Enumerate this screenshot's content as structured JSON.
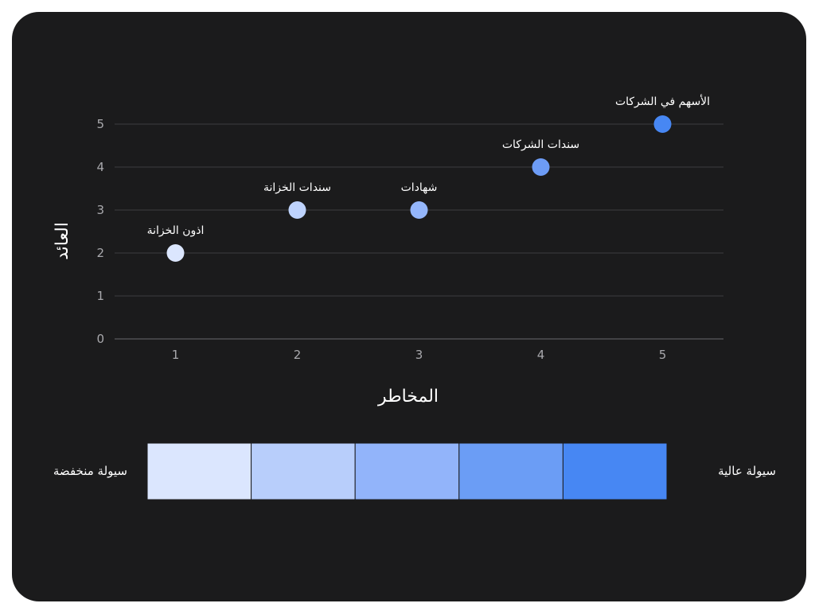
{
  "chart_data": {
    "type": "scatter",
    "title": "",
    "xlabel": "المخاطر",
    "ylabel": "العائد",
    "xlim": [
      0.5,
      5.5
    ],
    "ylim": [
      0,
      5
    ],
    "x_ticks": [
      1,
      2,
      3,
      4,
      5
    ],
    "y_ticks": [
      0,
      1,
      2,
      3,
      4,
      5
    ],
    "grid": "horizontal",
    "points": [
      {
        "label": "اذون الخزانة",
        "x": 1,
        "y": 2,
        "liquidity": 1,
        "color": "#dbe6fe"
      },
      {
        "label": "سندات الخزانة",
        "x": 2,
        "y": 3,
        "liquidity": 2,
        "color": "#bed3fd"
      },
      {
        "label": "شهادات",
        "x": 3,
        "y": 3,
        "liquidity": 3,
        "color": "#94b6fb"
      },
      {
        "label": "سندات الشركات",
        "x": 4,
        "y": 4,
        "liquidity": 4,
        "color": "#6d9cf6"
      },
      {
        "label": "الأسهم في الشركات",
        "x": 5,
        "y": 5,
        "liquidity": 5,
        "color": "#4787f3"
      }
    ],
    "color_scale": {
      "low_label": "سيولة منخفضة",
      "high_label": "سيولة عالية",
      "colors": [
        "#dbe6fe",
        "#b8cefb",
        "#92b4fa",
        "#6b9df5",
        "#4787f3"
      ]
    }
  }
}
